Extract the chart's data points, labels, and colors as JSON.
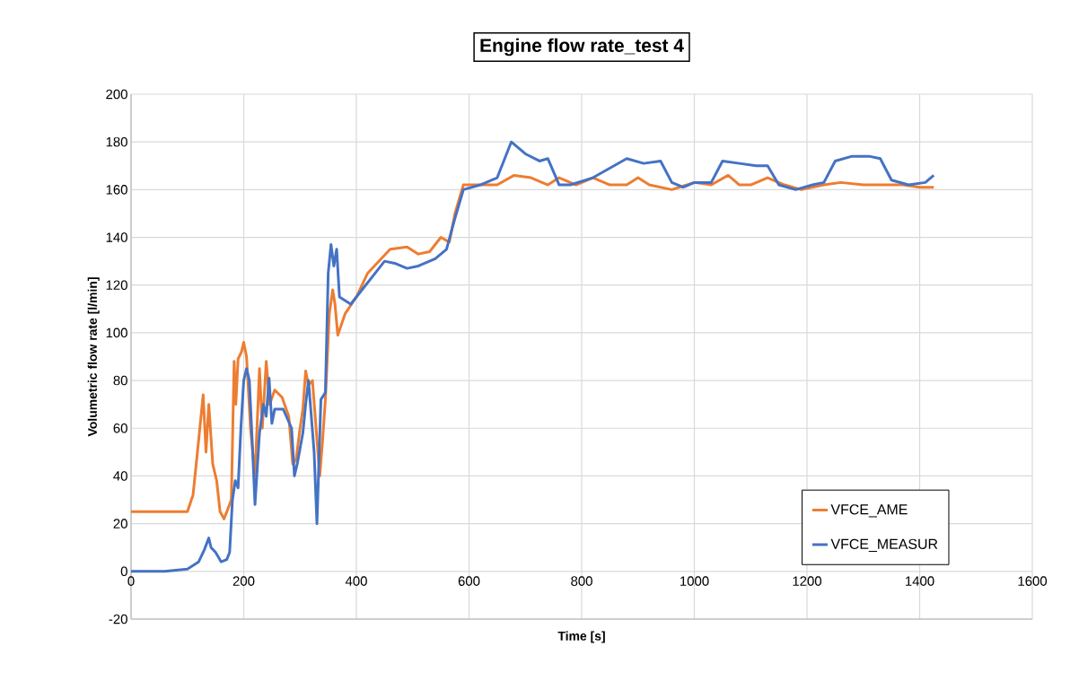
{
  "chart_data": {
    "type": "line",
    "title": "Engine flow rate_test 4",
    "xlabel": "Time [s]",
    "ylabel": "Volumetric flow rate [l/min]",
    "xlim": [
      0,
      1600
    ],
    "xticks": [
      0,
      200,
      400,
      600,
      800,
      1000,
      1200,
      1400,
      1600
    ],
    "ylim": [
      -20,
      200
    ],
    "yticks": [
      -20,
      0,
      20,
      40,
      60,
      80,
      100,
      120,
      140,
      160,
      180,
      200
    ],
    "grid": true,
    "legend": "bottom right",
    "marker": "none",
    "line_style": "solid",
    "series": [
      {
        "name": "VFCE_AME",
        "color": "#ed7d31",
        "x": [
          0,
          100,
          110,
          120,
          128,
          133,
          138,
          145,
          152,
          158,
          165,
          170,
          178,
          183,
          186,
          190,
          196,
          200,
          205,
          212,
          220,
          228,
          233,
          240,
          246,
          255,
          268,
          280,
          287,
          293,
          300,
          305,
          310,
          315,
          322,
          330,
          335,
          340,
          345,
          352,
          358,
          362,
          367,
          380,
          400,
          420,
          440,
          460,
          490,
          510,
          530,
          550,
          565,
          575,
          590,
          620,
          650,
          680,
          710,
          740,
          760,
          790,
          820,
          850,
          880,
          900,
          920,
          960,
          1000,
          1030,
          1060,
          1080,
          1100,
          1130,
          1160,
          1190,
          1230,
          1260,
          1300,
          1340,
          1370,
          1400,
          1425
        ],
        "values": [
          25,
          25,
          32,
          55,
          74,
          50,
          70,
          45,
          38,
          25,
          22,
          25,
          30,
          88,
          70,
          89,
          92,
          96,
          90,
          60,
          40,
          85,
          60,
          88,
          70,
          76,
          73,
          65,
          45,
          47,
          60,
          68,
          84,
          78,
          80,
          null,
          40,
          55,
          72,
          108,
          118,
          112,
          99,
          108,
          115,
          125,
          130,
          135,
          136,
          133,
          134,
          140,
          138,
          150,
          162,
          162,
          162,
          166,
          165,
          162,
          165,
          162,
          165,
          162,
          162,
          165,
          162,
          160,
          163,
          162,
          166,
          162,
          162,
          165,
          162,
          160,
          162,
          163,
          162,
          162,
          162,
          161,
          161
        ]
      },
      {
        "name": "VFCE_MEASUR",
        "color": "#4472c4",
        "x": [
          0,
          60,
          100,
          120,
          130,
          138,
          142,
          150,
          160,
          170,
          175,
          180,
          185,
          190,
          195,
          200,
          205,
          210,
          215,
          220,
          228,
          235,
          240,
          245,
          250,
          255,
          270,
          285,
          290,
          295,
          305,
          310,
          315,
          320,
          325,
          330,
          337,
          345,
          350,
          355,
          360,
          365,
          370,
          390,
          410,
          430,
          450,
          470,
          490,
          510,
          540,
          560,
          575,
          590,
          620,
          650,
          675,
          700,
          725,
          740,
          760,
          780,
          820,
          850,
          880,
          910,
          940,
          960,
          980,
          1000,
          1030,
          1050,
          1080,
          1110,
          1130,
          1150,
          1180,
          1210,
          1230,
          1250,
          1280,
          1310,
          1330,
          1350,
          1380,
          1410,
          1425
        ],
        "values": [
          0,
          0,
          1,
          4,
          9,
          14,
          10,
          8,
          4,
          5,
          8,
          30,
          38,
          35,
          60,
          80,
          85,
          80,
          55,
          28,
          58,
          70,
          65,
          81,
          62,
          68,
          68,
          60,
          40,
          45,
          58,
          70,
          80,
          65,
          50,
          20,
          72,
          75,
          125,
          137,
          128,
          135,
          115,
          112,
          118,
          124,
          130,
          129,
          127,
          128,
          131,
          135,
          148,
          160,
          162,
          165,
          180,
          175,
          172,
          173,
          162,
          162,
          165,
          169,
          173,
          171,
          172,
          163,
          161,
          163,
          163,
          172,
          171,
          170,
          170,
          162,
          160,
          162,
          163,
          172,
          174,
          174,
          173,
          164,
          162,
          163,
          166
        ]
      }
    ]
  }
}
